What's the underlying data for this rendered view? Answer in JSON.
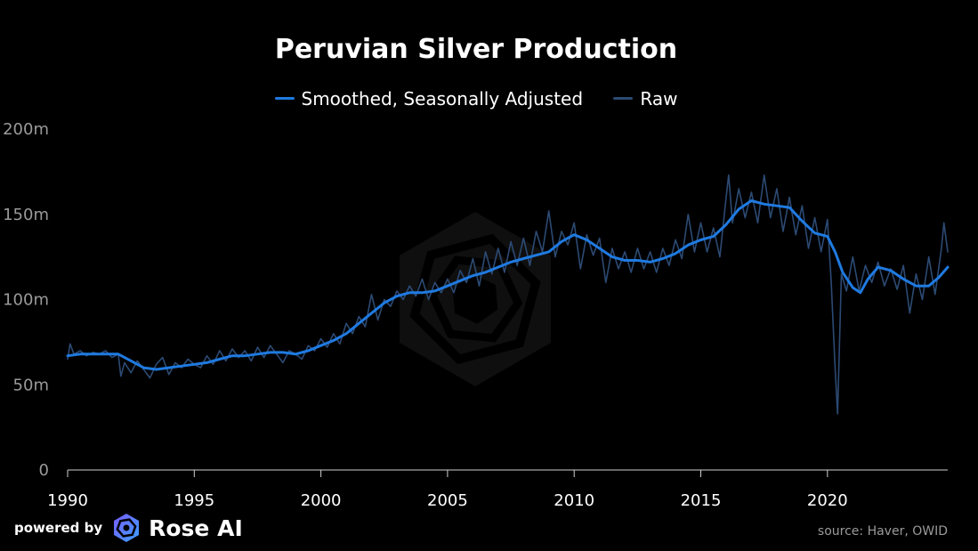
{
  "chart_data": {
    "type": "line",
    "title": "Peruvian Silver Production",
    "xlabel": "",
    "ylabel": "",
    "xlim": [
      1990,
      2024.75
    ],
    "ylim": [
      0,
      200000000
    ],
    "x_ticks": [
      "1990",
      "1995",
      "2000",
      "2005",
      "2010",
      "2015",
      "2020"
    ],
    "y_ticks": [
      "0",
      "50m",
      "100m",
      "150m",
      "200m"
    ],
    "grid": false,
    "legend_position": "top-center",
    "series": [
      {
        "name": "Smoothed, Seasonally Adjusted",
        "color": "#1f7ae0",
        "points": [
          [
            1990.0,
            67
          ],
          [
            1990.5,
            68
          ],
          [
            1991.0,
            68
          ],
          [
            1991.5,
            68
          ],
          [
            1992.0,
            68
          ],
          [
            1992.5,
            64
          ],
          [
            1993.0,
            60
          ],
          [
            1993.5,
            59
          ],
          [
            1994.0,
            60
          ],
          [
            1994.5,
            61
          ],
          [
            1995.0,
            62
          ],
          [
            1995.5,
            63
          ],
          [
            1996.0,
            65
          ],
          [
            1996.5,
            67
          ],
          [
            1997.0,
            67
          ],
          [
            1997.5,
            68
          ],
          [
            1998.0,
            69
          ],
          [
            1998.5,
            69
          ],
          [
            1999.0,
            68
          ],
          [
            1999.5,
            70
          ],
          [
            2000.0,
            73
          ],
          [
            2000.5,
            76
          ],
          [
            2001.0,
            80
          ],
          [
            2001.5,
            86
          ],
          [
            2002.0,
            92
          ],
          [
            2002.5,
            98
          ],
          [
            2003.0,
            102
          ],
          [
            2003.5,
            104
          ],
          [
            2004.0,
            104
          ],
          [
            2004.5,
            105
          ],
          [
            2005.0,
            108
          ],
          [
            2005.5,
            111
          ],
          [
            2006.0,
            114
          ],
          [
            2006.5,
            116
          ],
          [
            2007.0,
            119
          ],
          [
            2007.5,
            122
          ],
          [
            2008.0,
            124
          ],
          [
            2008.5,
            126
          ],
          [
            2009.0,
            128
          ],
          [
            2009.5,
            134
          ],
          [
            2010.0,
            138
          ],
          [
            2010.5,
            135
          ],
          [
            2011.0,
            130
          ],
          [
            2011.5,
            125
          ],
          [
            2012.0,
            123
          ],
          [
            2012.5,
            123
          ],
          [
            2013.0,
            122
          ],
          [
            2013.5,
            124
          ],
          [
            2014.0,
            127
          ],
          [
            2014.5,
            132
          ],
          [
            2015.0,
            135
          ],
          [
            2015.5,
            137
          ],
          [
            2016.0,
            144
          ],
          [
            2016.5,
            153
          ],
          [
            2017.0,
            158
          ],
          [
            2017.5,
            156
          ],
          [
            2018.0,
            155
          ],
          [
            2018.5,
            154
          ],
          [
            2019.0,
            146
          ],
          [
            2019.5,
            139
          ],
          [
            2020.0,
            137
          ],
          [
            2020.3,
            128
          ],
          [
            2020.6,
            116
          ],
          [
            2021.0,
            107
          ],
          [
            2021.3,
            104
          ],
          [
            2021.6,
            112
          ],
          [
            2022.0,
            119
          ],
          [
            2022.5,
            117
          ],
          [
            2023.0,
            112
          ],
          [
            2023.5,
            108
          ],
          [
            2024.0,
            108
          ],
          [
            2024.4,
            113
          ],
          [
            2024.75,
            119
          ]
        ]
      },
      {
        "name": "Raw",
        "color": "#2c4a73",
        "points": [
          [
            1990.0,
            65
          ],
          [
            1990.1,
            74
          ],
          [
            1990.25,
            68
          ],
          [
            1990.5,
            70
          ],
          [
            1990.75,
            67
          ],
          [
            1991.0,
            69
          ],
          [
            1991.25,
            68
          ],
          [
            1991.5,
            70
          ],
          [
            1991.75,
            66
          ],
          [
            1992.0,
            68
          ],
          [
            1992.1,
            55
          ],
          [
            1992.25,
            63
          ],
          [
            1992.5,
            57
          ],
          [
            1992.75,
            64
          ],
          [
            1993.0,
            59
          ],
          [
            1993.25,
            54
          ],
          [
            1993.5,
            62
          ],
          [
            1993.75,
            66
          ],
          [
            1994.0,
            56
          ],
          [
            1994.25,
            63
          ],
          [
            1994.5,
            60
          ],
          [
            1994.75,
            65
          ],
          [
            1995.0,
            62
          ],
          [
            1995.25,
            60
          ],
          [
            1995.5,
            67
          ],
          [
            1995.75,
            62
          ],
          [
            1996.0,
            70
          ],
          [
            1996.25,
            64
          ],
          [
            1996.5,
            71
          ],
          [
            1996.75,
            66
          ],
          [
            1997.0,
            70
          ],
          [
            1997.25,
            64
          ],
          [
            1997.5,
            72
          ],
          [
            1997.75,
            66
          ],
          [
            1998.0,
            73
          ],
          [
            1998.25,
            68
          ],
          [
            1998.5,
            63
          ],
          [
            1998.75,
            70
          ],
          [
            1999.0,
            68
          ],
          [
            1999.25,
            65
          ],
          [
            1999.5,
            73
          ],
          [
            1999.75,
            70
          ],
          [
            2000.0,
            77
          ],
          [
            2000.25,
            72
          ],
          [
            2000.5,
            80
          ],
          [
            2000.75,
            74
          ],
          [
            2001.0,
            86
          ],
          [
            2001.25,
            80
          ],
          [
            2001.5,
            90
          ],
          [
            2001.75,
            84
          ],
          [
            2002.0,
            103
          ],
          [
            2002.25,
            88
          ],
          [
            2002.5,
            100
          ],
          [
            2002.75,
            96
          ],
          [
            2003.0,
            105
          ],
          [
            2003.25,
            100
          ],
          [
            2003.5,
            108
          ],
          [
            2003.75,
            102
          ],
          [
            2004.0,
            112
          ],
          [
            2004.25,
            100
          ],
          [
            2004.5,
            110
          ],
          [
            2004.75,
            104
          ],
          [
            2005.0,
            112
          ],
          [
            2005.25,
            104
          ],
          [
            2005.5,
            117
          ],
          [
            2005.75,
            110
          ],
          [
            2006.0,
            124
          ],
          [
            2006.25,
            108
          ],
          [
            2006.5,
            128
          ],
          [
            2006.75,
            115
          ],
          [
            2007.0,
            130
          ],
          [
            2007.25,
            116
          ],
          [
            2007.5,
            134
          ],
          [
            2007.75,
            120
          ],
          [
            2008.0,
            136
          ],
          [
            2008.25,
            120
          ],
          [
            2008.5,
            140
          ],
          [
            2008.75,
            128
          ],
          [
            2009.0,
            152
          ],
          [
            2009.25,
            125
          ],
          [
            2009.5,
            140
          ],
          [
            2009.75,
            132
          ],
          [
            2010.0,
            145
          ],
          [
            2010.25,
            118
          ],
          [
            2010.5,
            138
          ],
          [
            2010.75,
            126
          ],
          [
            2011.0,
            136
          ],
          [
            2011.25,
            110
          ],
          [
            2011.5,
            130
          ],
          [
            2011.75,
            118
          ],
          [
            2012.0,
            128
          ],
          [
            2012.25,
            116
          ],
          [
            2012.5,
            130
          ],
          [
            2012.75,
            118
          ],
          [
            2013.0,
            128
          ],
          [
            2013.25,
            116
          ],
          [
            2013.5,
            130
          ],
          [
            2013.75,
            120
          ],
          [
            2014.0,
            135
          ],
          [
            2014.25,
            124
          ],
          [
            2014.5,
            150
          ],
          [
            2014.75,
            128
          ],
          [
            2015.0,
            145
          ],
          [
            2015.25,
            128
          ],
          [
            2015.5,
            142
          ],
          [
            2015.75,
            125
          ],
          [
            2016.0,
            160
          ],
          [
            2016.1,
            173
          ],
          [
            2016.25,
            145
          ],
          [
            2016.5,
            165
          ],
          [
            2016.75,
            148
          ],
          [
            2017.0,
            163
          ],
          [
            2017.25,
            145
          ],
          [
            2017.5,
            173
          ],
          [
            2017.75,
            148
          ],
          [
            2018.0,
            165
          ],
          [
            2018.25,
            140
          ],
          [
            2018.5,
            160
          ],
          [
            2018.75,
            138
          ],
          [
            2019.0,
            155
          ],
          [
            2019.25,
            130
          ],
          [
            2019.5,
            148
          ],
          [
            2019.75,
            128
          ],
          [
            2020.0,
            147
          ],
          [
            2020.15,
            110
          ],
          [
            2020.3,
            60
          ],
          [
            2020.4,
            33
          ],
          [
            2020.55,
            115
          ],
          [
            2020.75,
            105
          ],
          [
            2021.0,
            125
          ],
          [
            2021.25,
            105
          ],
          [
            2021.5,
            120
          ],
          [
            2021.75,
            110
          ],
          [
            2022.0,
            122
          ],
          [
            2022.25,
            108
          ],
          [
            2022.5,
            118
          ],
          [
            2022.75,
            106
          ],
          [
            2023.0,
            120
          ],
          [
            2023.25,
            92
          ],
          [
            2023.5,
            115
          ],
          [
            2023.75,
            100
          ],
          [
            2024.0,
            125
          ],
          [
            2024.25,
            103
          ],
          [
            2024.5,
            130
          ],
          [
            2024.6,
            145
          ],
          [
            2024.75,
            128
          ]
        ]
      }
    ]
  },
  "footer": {
    "powered_label": "powered by",
    "brand": "Rose AI",
    "source": "source: Haver, OWID"
  }
}
